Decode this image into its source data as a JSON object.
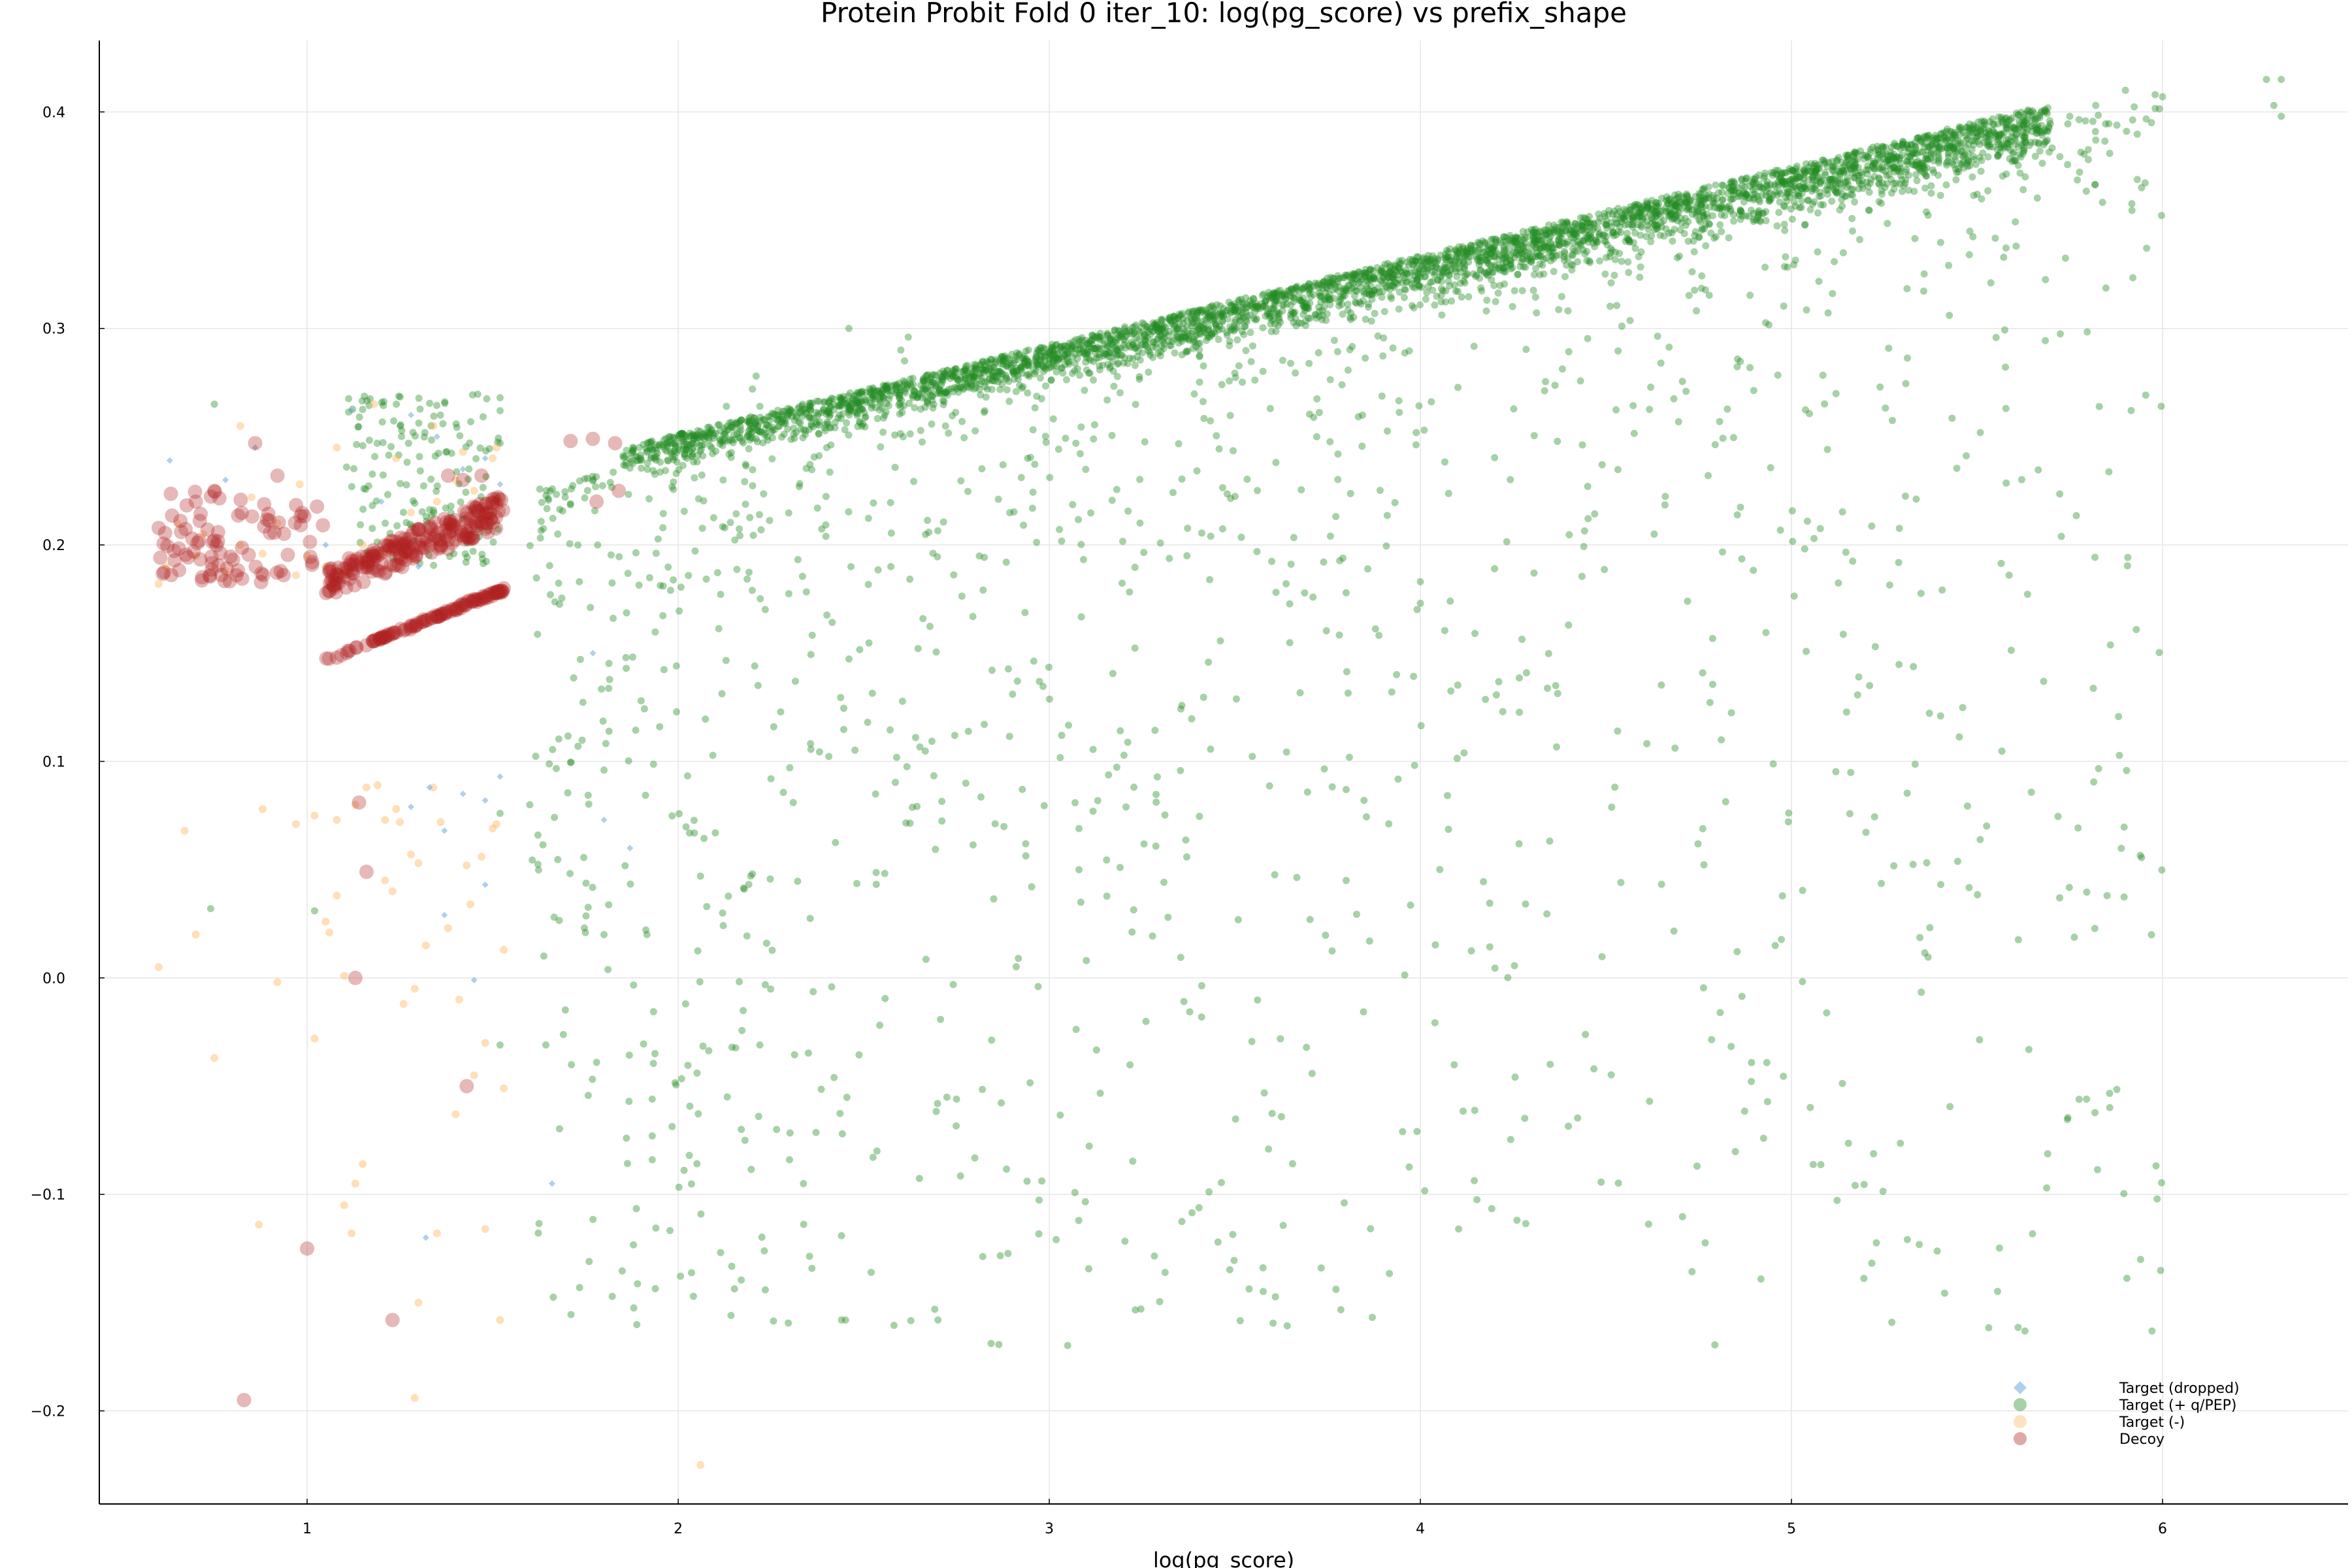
{
  "chart_data": {
    "type": "scatter",
    "title": "Protein Probit Fold 0 iter_10: log(pg_score) vs prefix_shape",
    "xlabel": "log(pg_score)",
    "ylabel": "",
    "xlim": [
      0.44,
      6.5
    ],
    "ylim": [
      -0.243,
      0.433
    ],
    "xticks": [
      1,
      2,
      3,
      4,
      5,
      6
    ],
    "yticks": [
      -0.2,
      -0.1,
      0.0,
      0.1,
      0.2,
      0.3,
      0.4
    ],
    "ytick_labels": [
      "−0.2",
      "−0.1",
      "0.0",
      "0.1",
      "0.2",
      "0.3",
      "0.4"
    ],
    "xtick_labels": [
      "1",
      "2",
      "3",
      "4",
      "5",
      "6"
    ],
    "grid": true,
    "legend_position": "bottom-right",
    "series": [
      {
        "name": "Target (dropped)",
        "color": "#6fa8dc",
        "marker": "diamond",
        "points": [
          [
            0.63,
            0.239
          ],
          [
            0.78,
            0.23
          ],
          [
            0.86,
            0.245
          ],
          [
            1.12,
            0.262
          ],
          [
            1.2,
            0.22
          ],
          [
            1.28,
            0.26
          ],
          [
            1.35,
            0.25
          ],
          [
            1.42,
            0.235
          ],
          [
            1.48,
            0.24
          ],
          [
            1.52,
            0.228
          ],
          [
            1.3,
            0.19
          ],
          [
            1.4,
            0.205
          ],
          [
            1.45,
            0.215
          ],
          [
            1.05,
            0.2
          ],
          [
            1.18,
            0.195
          ],
          [
            1.33,
            0.088
          ],
          [
            1.42,
            0.085
          ],
          [
            1.48,
            0.082
          ],
          [
            1.52,
            0.093
          ],
          [
            1.28,
            0.079
          ],
          [
            1.37,
            0.068
          ],
          [
            1.37,
            0.029
          ],
          [
            1.45,
            -0.001
          ],
          [
            1.48,
            0.043
          ],
          [
            1.32,
            -0.12
          ],
          [
            1.66,
            -0.095
          ],
          [
            1.77,
            0.15
          ],
          [
            1.8,
            0.073
          ],
          [
            1.87,
            0.06
          ]
        ]
      },
      {
        "name": "Target (+ q/PEP)",
        "color": "#228b22",
        "marker": "circle",
        "generator": {
          "band": {
            "n": 3400,
            "x_from": 1.85,
            "x_to": 5.7,
            "y_at_from": 0.245,
            "y_slope": 0.0412
          },
          "scatter_below": {
            "n": 1500,
            "x_from": 1.6,
            "x_to": 6.0,
            "y_from": -0.16
          },
          "early_vertical": {
            "n": 160,
            "x_from": 1.1,
            "x_to": 1.52,
            "y_from": 0.19,
            "y_to": 0.27
          }
        },
        "points": [
          [
            0.75,
            0.265
          ],
          [
            0.74,
            0.032
          ],
          [
            1.02,
            0.031
          ],
          [
            1.52,
            -0.031
          ],
          [
            1.52,
            0.076
          ],
          [
            1.52,
            0.247
          ],
          [
            1.52,
            0.262
          ],
          [
            1.52,
            0.268
          ],
          [
            6.28,
            0.415
          ],
          [
            6.32,
            0.415
          ],
          [
            6.3,
            0.403
          ],
          [
            6.32,
            0.398
          ],
          [
            5.98,
            0.408
          ],
          [
            6.0,
            0.407
          ],
          [
            5.9,
            0.41
          ],
          [
            5.82,
            0.403
          ],
          [
            5.75,
            0.398
          ],
          [
            5.63,
            0.37
          ],
          [
            5.82,
            0.387
          ],
          [
            5.8,
            0.378
          ],
          [
            4.72,
            0.174
          ],
          [
            4.63,
            0.205
          ],
          [
            4.2,
            0.189
          ],
          [
            4.0,
            0.173
          ],
          [
            4.0,
            0.183
          ],
          [
            3.8,
            0.087
          ],
          [
            3.8,
            0.045
          ],
          [
            3.32,
            0.028
          ],
          [
            3.08,
            0.069
          ],
          [
            3.08,
            0.05
          ],
          [
            3.1,
            0.008
          ],
          [
            2.97,
            -0.004
          ],
          [
            2.7,
            -0.158
          ],
          [
            2.52,
            -0.136
          ],
          [
            2.44,
            -0.158
          ],
          [
            2.3,
            -0.084
          ],
          [
            2.42,
            -0.046
          ],
          [
            2.75,
            -0.056
          ],
          [
            1.93,
            -0.056
          ],
          [
            1.93,
            -0.073
          ],
          [
            1.93,
            -0.084
          ],
          [
            2.03,
            -0.082
          ],
          [
            2.17,
            -0.07
          ],
          [
            2.18,
            -0.075
          ],
          [
            2.22,
            -0.031
          ],
          [
            1.76,
            -0.131
          ],
          [
            1.78,
            -0.039
          ],
          [
            2.02,
            -0.012
          ],
          [
            2.06,
            0.047
          ],
          [
            2.1,
            0.067
          ],
          [
            2.2,
            0.048
          ],
          [
            2.25,
            0.092
          ],
          [
            2.31,
            0.081
          ],
          [
            1.6,
            0.08
          ],
          [
            1.8,
            0.02
          ],
          [
            1.75,
            0.021
          ],
          [
            1.73,
            0.107
          ],
          [
            1.8,
            0.096
          ],
          [
            1.86,
            0.143
          ],
          [
            1.9,
            0.128
          ],
          [
            1.95,
            0.116
          ],
          [
            2.46,
            0.3
          ],
          [
            2.13,
            0.264
          ],
          [
            2.2,
            0.272
          ],
          [
            2.21,
            0.278
          ],
          [
            2.22,
            0.264
          ],
          [
            2.6,
            0.29
          ],
          [
            2.61,
            0.285
          ],
          [
            2.62,
            0.296
          ]
        ]
      },
      {
        "name": "Target (-)",
        "color": "#fdb863",
        "marker": "circle",
        "points": [
          [
            0.6,
            0.182
          ],
          [
            0.62,
            0.19
          ],
          [
            0.65,
            0.21
          ],
          [
            0.7,
            0.195
          ],
          [
            0.72,
            0.205
          ],
          [
            0.78,
            0.188
          ],
          [
            0.82,
            0.2
          ],
          [
            0.85,
            0.222
          ],
          [
            0.88,
            0.196
          ],
          [
            0.92,
            0.21
          ],
          [
            0.97,
            0.186
          ],
          [
            1.0,
            0.195
          ],
          [
            1.05,
            0.19
          ],
          [
            1.1,
            0.188
          ],
          [
            1.15,
            0.2
          ],
          [
            1.2,
            0.196
          ],
          [
            1.28,
            0.215
          ],
          [
            1.35,
            0.22
          ],
          [
            1.4,
            0.23
          ],
          [
            1.45,
            0.225
          ],
          [
            1.5,
            0.24
          ],
          [
            0.82,
            0.255
          ],
          [
            0.98,
            0.228
          ],
          [
            1.08,
            0.245
          ],
          [
            1.18,
            0.265
          ],
          [
            1.24,
            0.24
          ],
          [
            1.34,
            0.255
          ],
          [
            1.42,
            0.243
          ],
          [
            1.51,
            0.245
          ],
          [
            0.67,
            0.068
          ],
          [
            0.7,
            0.02
          ],
          [
            0.6,
            0.005
          ],
          [
            0.75,
            -0.037
          ],
          [
            0.88,
            0.078
          ],
          [
            0.92,
            -0.002
          ],
          [
            0.97,
            0.071
          ],
          [
            1.02,
            0.075
          ],
          [
            1.06,
            0.021
          ],
          [
            1.05,
            0.026
          ],
          [
            1.08,
            0.038
          ],
          [
            1.08,
            0.073
          ],
          [
            1.1,
            0.001
          ],
          [
            1.13,
            0.08
          ],
          [
            1.16,
            0.088
          ],
          [
            1.19,
            0.089
          ],
          [
            1.21,
            0.073
          ],
          [
            1.21,
            0.045
          ],
          [
            1.23,
            0.04
          ],
          [
            1.24,
            0.078
          ],
          [
            1.25,
            0.072
          ],
          [
            1.26,
            -0.012
          ],
          [
            1.28,
            0.057
          ],
          [
            1.29,
            -0.005
          ],
          [
            1.3,
            0.053
          ],
          [
            1.32,
            0.015
          ],
          [
            1.34,
            0.088
          ],
          [
            1.36,
            0.072
          ],
          [
            1.38,
            0.023
          ],
          [
            1.4,
            -0.063
          ],
          [
            1.41,
            -0.01
          ],
          [
            1.43,
            0.052
          ],
          [
            1.44,
            0.034
          ],
          [
            1.45,
            -0.045
          ],
          [
            1.47,
            0.056
          ],
          [
            1.48,
            -0.03
          ],
          [
            1.5,
            0.069
          ],
          [
            1.51,
            0.071
          ],
          [
            1.53,
            0.013
          ],
          [
            1.53,
            -0.051
          ],
          [
            1.02,
            -0.028
          ],
          [
            1.1,
            -0.105
          ],
          [
            1.12,
            -0.118
          ],
          [
            1.13,
            -0.095
          ],
          [
            1.15,
            -0.086
          ],
          [
            1.35,
            -0.118
          ],
          [
            1.48,
            -0.116
          ],
          [
            1.3,
            -0.15
          ],
          [
            1.52,
            -0.158
          ],
          [
            0.87,
            -0.114
          ],
          [
            1.29,
            -0.194
          ],
          [
            2.06,
            -0.225
          ]
        ]
      },
      {
        "name": "Decoy",
        "color": "#b22222",
        "marker": "circle",
        "generator": {
          "upper_band": {
            "n": 220,
            "x_from": 1.05,
            "x_to": 1.53,
            "y_at_from": 0.19,
            "y_slope": 0.07
          },
          "lower_line": {
            "n": 110,
            "x_from": 1.04,
            "x_to": 1.53,
            "y_at_from": 0.146,
            "y_slope": 0.068
          },
          "cluster_left": {
            "n": 90,
            "x_from": 0.6,
            "x_to": 1.05,
            "y_from": 0.182,
            "y_to": 0.225
          }
        },
        "points": [
          [
            0.86,
            0.247
          ],
          [
            1.14,
            0.081
          ],
          [
            1.16,
            0.049
          ],
          [
            1.13,
            0.0
          ],
          [
            1.43,
            -0.05
          ],
          [
            1.0,
            -0.125
          ],
          [
            1.23,
            -0.158
          ],
          [
            0.83,
            -0.195
          ],
          [
            1.38,
            0.232
          ],
          [
            1.42,
            0.23
          ],
          [
            1.47,
            0.232
          ],
          [
            1.71,
            0.248
          ],
          [
            1.77,
            0.249
          ],
          [
            1.83,
            0.247
          ],
          [
            1.78,
            0.22
          ],
          [
            1.84,
            0.225
          ],
          [
            1.45,
            0.175
          ],
          [
            1.5,
            0.178
          ],
          [
            1.53,
            0.18
          ],
          [
            0.92,
            0.232
          ],
          [
            0.7,
            0.22
          ],
          [
            0.75,
            0.225
          ]
        ]
      }
    ]
  }
}
